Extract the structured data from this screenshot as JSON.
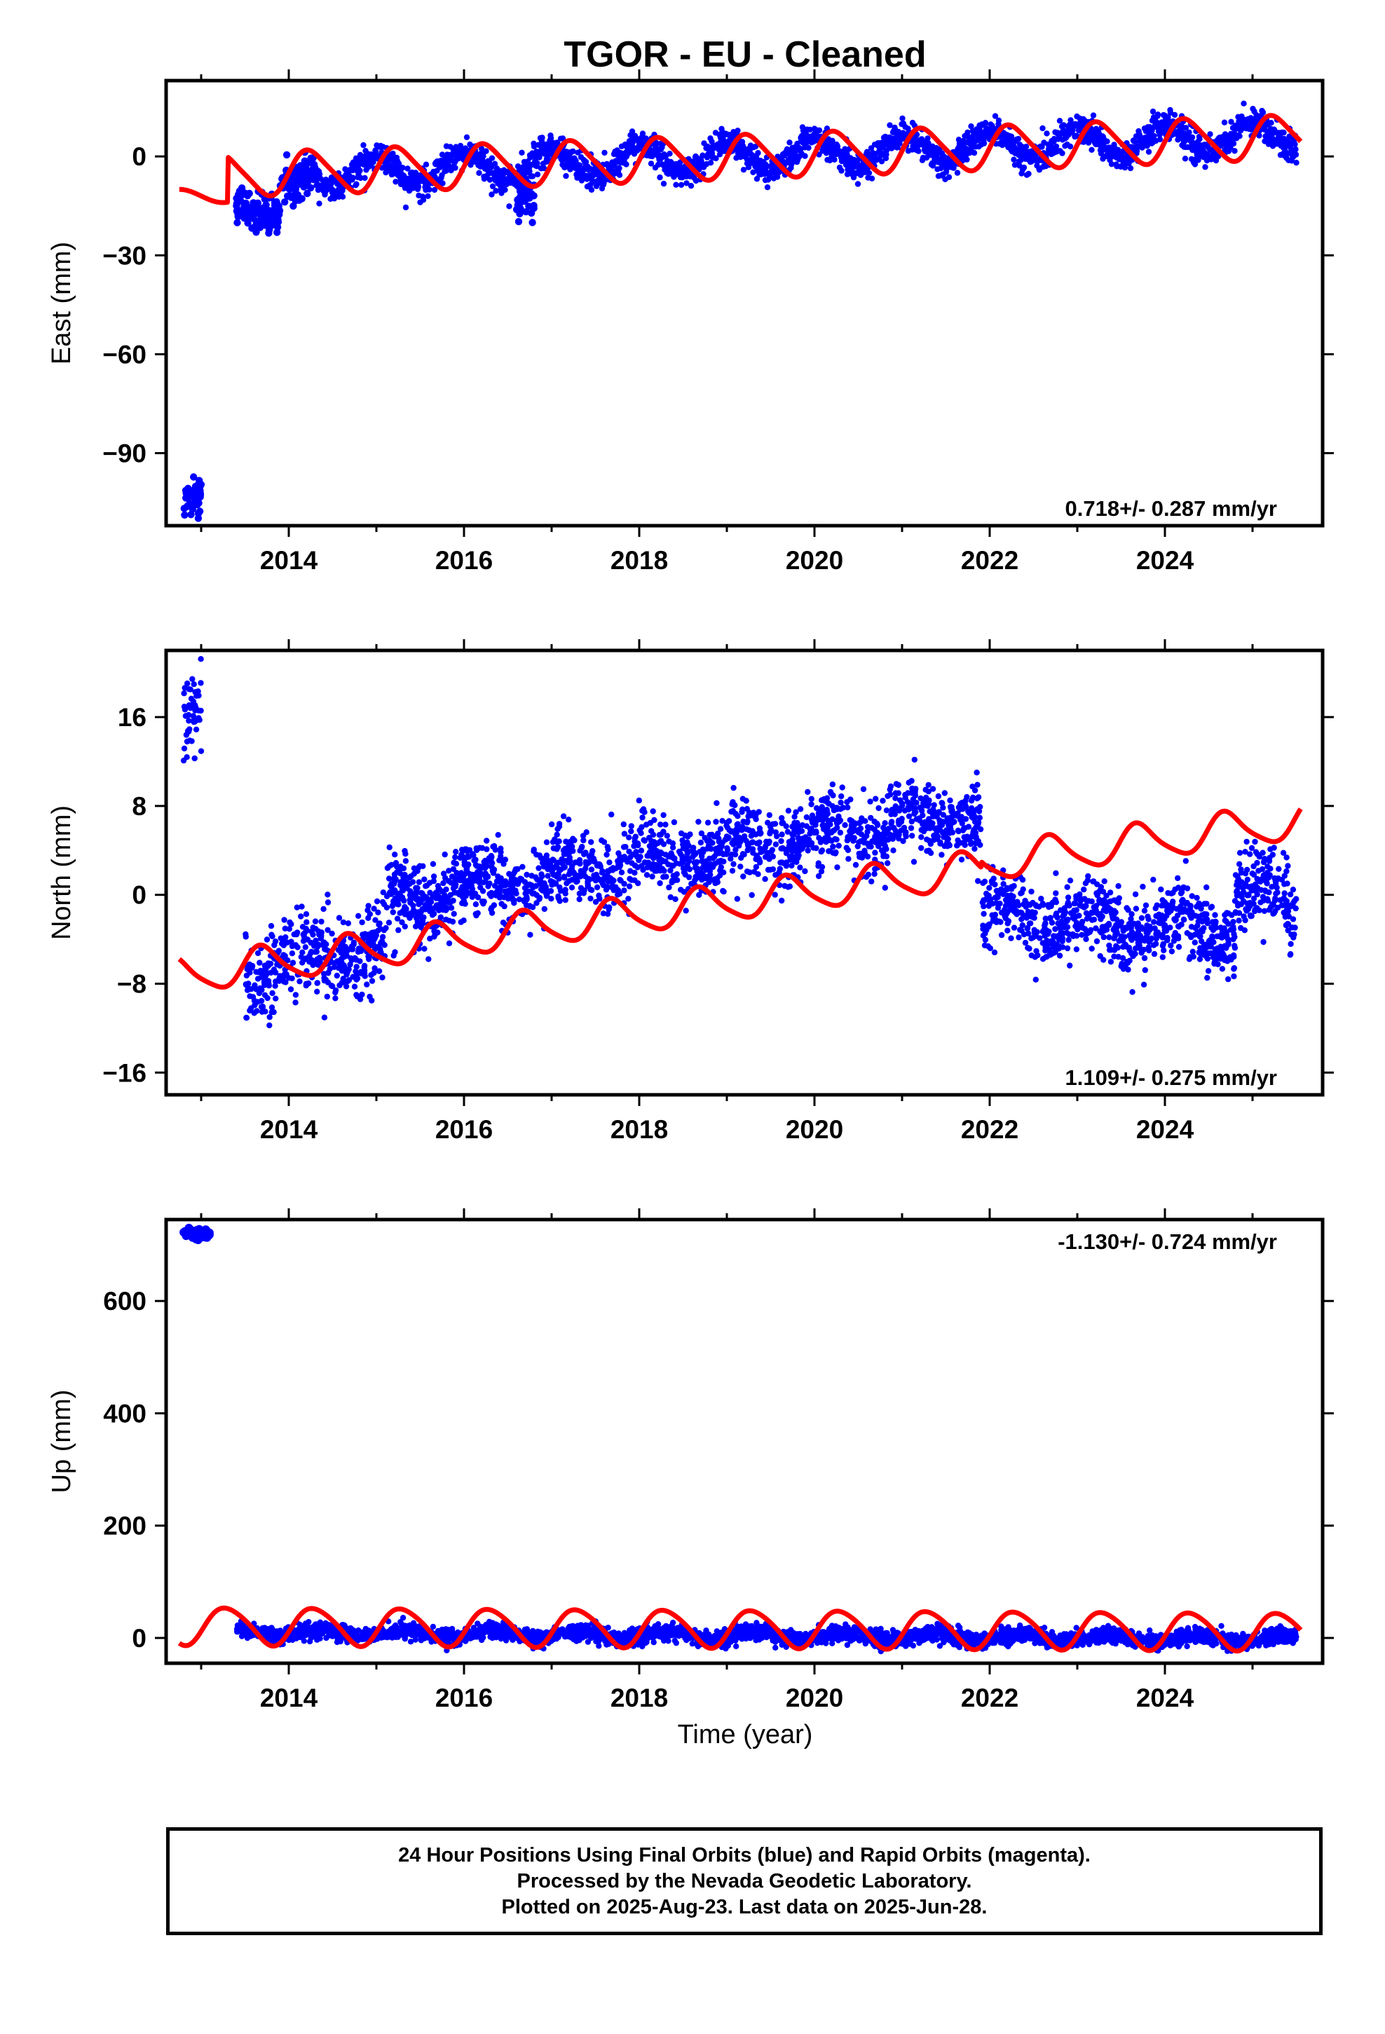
{
  "title": "TGOR  - EU - Cleaned",
  "xlabel": "Time (year)",
  "colors": {
    "final_orbits": "#0000ff",
    "model_fit": "#ff0000",
    "axis": "#000000"
  },
  "footer": {
    "line1": "24 Hour Positions Using Final Orbits (blue) and Rapid Orbits (magenta).",
    "line2": "Processed by the Nevada Geodetic Laboratory.",
    "line3": "Plotted on 2025-Aug-23. Last data on 2025-Jun-28."
  },
  "chart_data": [
    {
      "type": "scatter",
      "component": "east",
      "ylabel": "East (mm)",
      "xlim": [
        2012.6,
        2025.8
      ],
      "ylim": [
        -112,
        23
      ],
      "xticks": [
        "2014",
        "2016",
        "2018",
        "2020",
        "2022",
        "2024"
      ],
      "yticks": [
        0,
        -30,
        -60,
        -90
      ],
      "rate_label": "0.718+/- 0.287 mm/yr",
      "trend": {
        "start_year": 2013.5,
        "value_at_start": -7.5,
        "rate_mm_per_yr": 1.2
      },
      "clusters": [
        {
          "x": [
            2012.8,
            2013.0
          ],
          "y": [
            -105,
            -103
          ],
          "spread": 3
        },
        {
          "x": [
            2013.4,
            2013.9
          ],
          "y": [
            -15,
            -18
          ],
          "spread": 3
        },
        {
          "x": [
            2013.9,
            2014.3
          ],
          "y": [
            -8,
            -5
          ],
          "spread": 3
        },
        {
          "x": [
            2016.6,
            2016.8
          ],
          "y": [
            -12,
            -12
          ],
          "spread": 3
        }
      ],
      "fit": {
        "x": [
          2012.75,
          2025.55
        ],
        "offset_year": 2013.3,
        "offsets": [
          -10,
          0
        ],
        "base_at_2014": -5,
        "rate_mm_per_yr": 0.95,
        "annual_amp": 6.5,
        "annual_phase": 0.0,
        "semiannual_amp": 1.0
      }
    },
    {
      "type": "scatter",
      "component": "north",
      "ylabel": "North (mm)",
      "xlim": [
        2012.6,
        2025.8
      ],
      "ylim": [
        -18,
        22
      ],
      "xticks": [
        "2014",
        "2016",
        "2018",
        "2020",
        "2022",
        "2024"
      ],
      "yticks": [
        16,
        8,
        0,
        -8,
        -16
      ],
      "rate_label": "1.109+/- 0.275 mm/yr",
      "segments": [
        {
          "x": [
            2012.8,
            2013.0
          ],
          "y": [
            16,
            17
          ],
          "spread": 2.5
        },
        {
          "x": [
            2013.5,
            2015.1
          ],
          "y": [
            -7,
            -4.5
          ],
          "spread": 1.8
        },
        {
          "x": [
            2015.1,
            2021.9
          ],
          "y": [
            -0.5,
            7.5
          ],
          "spread": 1.7
        },
        {
          "x": [
            2021.9,
            2024.8
          ],
          "y": [
            -1.5,
            -3.5
          ],
          "spread": 1.6
        },
        {
          "x": [
            2024.8,
            2025.5
          ],
          "y": [
            0.5,
            -1.0
          ],
          "spread": 1.6
        }
      ],
      "fit": {
        "x": [
          2012.75,
          2025.55
        ],
        "base_at_2014": -6,
        "rate_mm_per_yr": 1.05,
        "offset_year": 2021.9,
        "offset_mm": 0.5,
        "annual_amp": 1.6,
        "annual_phase": 0.55,
        "semiannual_amp": 0.3
      }
    },
    {
      "type": "scatter",
      "component": "up",
      "ylabel": "Up (mm)",
      "xlim": [
        2012.6,
        2025.8
      ],
      "ylim": [
        -45,
        745
      ],
      "xticks": [
        "2014",
        "2016",
        "2018",
        "2020",
        "2022",
        "2024"
      ],
      "yticks": [
        600,
        400,
        200,
        0
      ],
      "rate_label": "-1.130+/- 0.724 mm/yr",
      "clusters": [
        {
          "x": [
            2012.8,
            2013.1
          ],
          "y": [
            720,
            718
          ],
          "spread": 5
        }
      ],
      "segments": [
        {
          "x": [
            2013.4,
            2025.5
          ],
          "y": [
            10,
            -2
          ],
          "spread": 7
        }
      ],
      "fit": {
        "x": [
          2012.75,
          2025.55
        ],
        "base": 22,
        "rate_mm_per_yr": -0.8,
        "annual_amp": 33,
        "annual_phase": 0.95,
        "semiannual_amp": 4
      }
    }
  ]
}
